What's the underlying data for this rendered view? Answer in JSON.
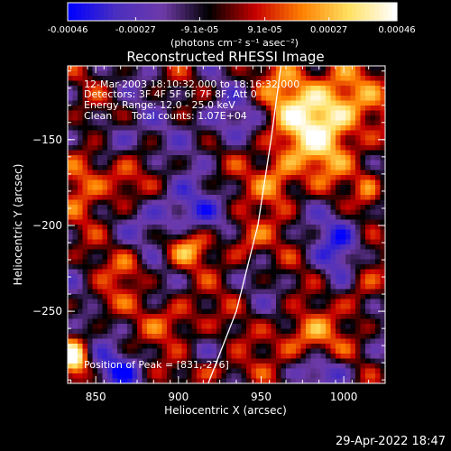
{
  "chart_data": {
    "type": "heatmap",
    "title": "Reconstructed RHESSI Image",
    "xlabel": "Heliocentric X (arcsec)",
    "ylabel": "Heliocentric Y (arcsec)",
    "xlim": [
      833,
      1025
    ],
    "ylim": [
      -292,
      -107
    ],
    "x_ticks": [
      850,
      900,
      950,
      1000
    ],
    "y_ticks": [
      -150,
      -200,
      -250
    ],
    "colorbar": {
      "units": "(photons cm⁻² s⁻¹ asec⁻²)",
      "min": -0.00046,
      "max": 0.00046,
      "tick_labels": [
        "-0.00046",
        "-0.00027",
        "-9.1e-05",
        "9.1e-05",
        "0.00027",
        "0.00046"
      ],
      "tick_values": [
        -0.00046,
        -0.00027,
        -9.1e-05,
        9.1e-05,
        0.00027,
        0.00046
      ],
      "colors": [
        "#0000ff",
        "#4b2fbf",
        "#6e3aa8",
        "#000000",
        "#c80000",
        "#ff8000",
        "#ffe060",
        "#ffffff"
      ]
    },
    "annotations": [
      "12-Mar-2003 18:10:32.000 to 18:16:32.000",
      "Detectors: 3F 4F 5F 6F 7F 8F, Att 0",
      "Energy Range: 12.0 - 25.0 keV",
      "Clean",
      "Total counts: 1.07E+04"
    ],
    "peak_label": "Position of Peak = [831,-276]",
    "limb_curve": [
      [
        918,
        -292
      ],
      [
        935,
        -250
      ],
      [
        948,
        -200
      ],
      [
        956,
        -150
      ],
      [
        962,
        -107
      ]
    ],
    "hotspots": [
      {
        "x": 980,
        "y": -140,
        "sx": 25,
        "sy": 25,
        "v": 0.0004
      },
      {
        "x": 997,
        "y": -130,
        "sx": 12,
        "sy": 12,
        "v": 0.0002
      },
      {
        "x": 845,
        "y": -165,
        "sx": 10,
        "sy": 18,
        "v": 0.0003
      },
      {
        "x": 865,
        "y": -178,
        "sx": 8,
        "sy": 10,
        "v": 0.00022
      },
      {
        "x": 905,
        "y": -212,
        "sx": 10,
        "sy": 8,
        "v": 0.00032
      },
      {
        "x": 940,
        "y": -210,
        "sx": 9,
        "sy": 9,
        "v": 0.00024
      },
      {
        "x": 975,
        "y": -265,
        "sx": 14,
        "sy": 10,
        "v": 0.0003
      },
      {
        "x": 900,
        "y": -255,
        "sx": 12,
        "sy": 10,
        "v": 0.00024
      },
      {
        "x": 1010,
        "y": -235,
        "sx": 8,
        "sy": 14,
        "v": 0.00026
      },
      {
        "x": 837,
        "y": -278,
        "sx": 6,
        "sy": 8,
        "v": 0.00046
      },
      {
        "x": 870,
        "y": -225,
        "sx": 8,
        "sy": 8,
        "v": 0.0002
      },
      {
        "x": 960,
        "y": -175,
        "sx": 8,
        "sy": 10,
        "v": 0.00022
      },
      {
        "x": 925,
        "y": -285,
        "sx": 12,
        "sy": 5,
        "v": 0.0002
      },
      {
        "x": 1015,
        "y": -180,
        "sx": 6,
        "sy": 10,
        "v": 0.0002
      },
      {
        "x": 855,
        "y": -245,
        "sx": 8,
        "sy": 6,
        "v": 0.00015
      }
    ],
    "coldspots": [
      {
        "x": 900,
        "y": -195,
        "sx": 15,
        "sy": 12,
        "v": -0.0003
      },
      {
        "x": 860,
        "y": -150,
        "sx": 12,
        "sy": 10,
        "v": -0.00025
      },
      {
        "x": 930,
        "y": -140,
        "sx": 15,
        "sy": 12,
        "v": -0.00025
      },
      {
        "x": 1000,
        "y": -210,
        "sx": 12,
        "sy": 18,
        "v": -0.00025
      },
      {
        "x": 860,
        "y": -285,
        "sx": 12,
        "sy": 8,
        "v": -0.00025
      },
      {
        "x": 990,
        "y": -285,
        "sx": 12,
        "sy": 6,
        "v": -0.0002
      }
    ]
  },
  "timestamp": "29-Apr-2022 18:47"
}
